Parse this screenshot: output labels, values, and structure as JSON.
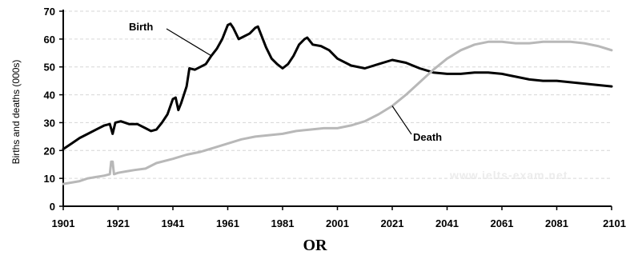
{
  "chart_data": {
    "type": "line",
    "title": "",
    "xlabel": "",
    "ylabel": "Births and deaths (000s)",
    "xlim": [
      1901,
      2101
    ],
    "ylim": [
      0,
      70
    ],
    "xticks": [
      "1901",
      "1921",
      "1941",
      "1961",
      "1981",
      "2001",
      "2021",
      "2041",
      "2061",
      "2081",
      "2101"
    ],
    "yticks": [
      "0",
      "10",
      "20",
      "30",
      "40",
      "50",
      "60",
      "70"
    ],
    "grid": "horizontal dashed",
    "legend": "none",
    "watermark": "www.ielts-exam.net",
    "series": [
      {
        "name": "Birth",
        "color": "#000000",
        "points": [
          [
            1901,
            20.5
          ],
          [
            1904,
            22.5
          ],
          [
            1907,
            24.5
          ],
          [
            1910,
            26
          ],
          [
            1913,
            27.5
          ],
          [
            1916,
            29
          ],
          [
            1918,
            29.5
          ],
          [
            1919,
            26
          ],
          [
            1920,
            30
          ],
          [
            1922,
            30.5
          ],
          [
            1925,
            29.5
          ],
          [
            1928,
            29.5
          ],
          [
            1931,
            28
          ],
          [
            1933,
            27
          ],
          [
            1935,
            27.5
          ],
          [
            1937,
            30
          ],
          [
            1939,
            33
          ],
          [
            1941,
            38.5
          ],
          [
            1942,
            39
          ],
          [
            1943,
            34.5
          ],
          [
            1944,
            37
          ],
          [
            1946,
            43
          ],
          [
            1947,
            49.5
          ],
          [
            1949,
            49
          ],
          [
            1951,
            50
          ],
          [
            1953,
            51
          ],
          [
            1955,
            54
          ],
          [
            1957,
            56.5
          ],
          [
            1959,
            60
          ],
          [
            1961,
            65
          ],
          [
            1962,
            65.5
          ],
          [
            1963,
            64
          ],
          [
            1965,
            60
          ],
          [
            1967,
            61
          ],
          [
            1969,
            62
          ],
          [
            1971,
            64
          ],
          [
            1972,
            64.5
          ],
          [
            1973,
            62
          ],
          [
            1975,
            57
          ],
          [
            1977,
            53
          ],
          [
            1979,
            51
          ],
          [
            1981,
            49.5
          ],
          [
            1983,
            51
          ],
          [
            1985,
            54
          ],
          [
            1987,
            58
          ],
          [
            1989,
            60
          ],
          [
            1990,
            60.5
          ],
          [
            1992,
            58
          ],
          [
            1995,
            57.5
          ],
          [
            1998,
            56
          ],
          [
            2001,
            53
          ],
          [
            2006,
            50.5
          ],
          [
            2011,
            49.5
          ],
          [
            2016,
            51
          ],
          [
            2021,
            52.5
          ],
          [
            2026,
            51.5
          ],
          [
            2031,
            49.5
          ],
          [
            2036,
            48
          ],
          [
            2041,
            47.5
          ],
          [
            2046,
            47.5
          ],
          [
            2051,
            48
          ],
          [
            2056,
            48
          ],
          [
            2061,
            47.5
          ],
          [
            2066,
            46.5
          ],
          [
            2071,
            45.5
          ],
          [
            2076,
            45
          ],
          [
            2081,
            45
          ],
          [
            2086,
            44.5
          ],
          [
            2091,
            44
          ],
          [
            2096,
            43.5
          ],
          [
            2101,
            43
          ]
        ]
      },
      {
        "name": "Death",
        "color": "#b8b8b8",
        "points": [
          [
            1901,
            8
          ],
          [
            1904,
            8.5
          ],
          [
            1907,
            9
          ],
          [
            1910,
            10
          ],
          [
            1913,
            10.5
          ],
          [
            1916,
            11
          ],
          [
            1918,
            11.5
          ],
          [
            1918.5,
            16
          ],
          [
            1919,
            16
          ],
          [
            1919.5,
            11.5
          ],
          [
            1921,
            12
          ],
          [
            1924,
            12.5
          ],
          [
            1927,
            13
          ],
          [
            1931,
            13.5
          ],
          [
            1935,
            15.5
          ],
          [
            1941,
            17
          ],
          [
            1946,
            18.5
          ],
          [
            1951,
            19.5
          ],
          [
            1956,
            21
          ],
          [
            1961,
            22.5
          ],
          [
            1966,
            24
          ],
          [
            1971,
            25
          ],
          [
            1976,
            25.5
          ],
          [
            1981,
            26
          ],
          [
            1986,
            27
          ],
          [
            1991,
            27.5
          ],
          [
            1996,
            28
          ],
          [
            2001,
            28
          ],
          [
            2006,
            29
          ],
          [
            2011,
            30.5
          ],
          [
            2016,
            33
          ],
          [
            2021,
            36
          ],
          [
            2026,
            40
          ],
          [
            2031,
            44.5
          ],
          [
            2036,
            49
          ],
          [
            2041,
            53
          ],
          [
            2046,
            56
          ],
          [
            2051,
            58
          ],
          [
            2056,
            59
          ],
          [
            2061,
            59
          ],
          [
            2066,
            58.5
          ],
          [
            2071,
            58.5
          ],
          [
            2076,
            59
          ],
          [
            2081,
            59
          ],
          [
            2086,
            59
          ],
          [
            2091,
            58.5
          ],
          [
            2096,
            57.5
          ],
          [
            2101,
            56
          ]
        ]
      }
    ],
    "annotations": [
      {
        "text": "Birth",
        "series": "Birth",
        "point_x": 1955
      },
      {
        "text": "Death",
        "series": "Death",
        "point_x": 2021
      }
    ]
  },
  "footer_text": "OR"
}
